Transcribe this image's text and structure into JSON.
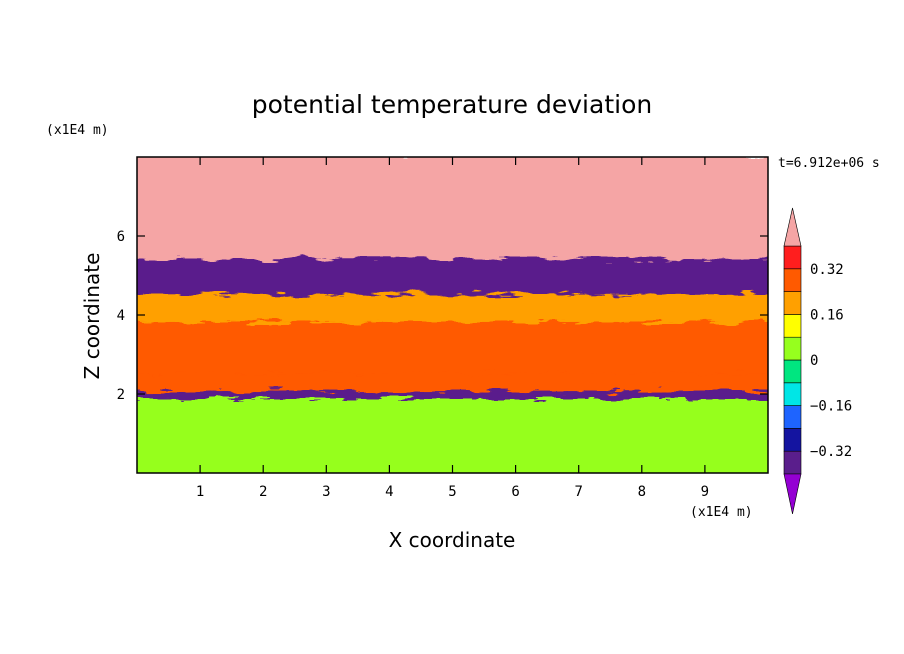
{
  "chart_data": {
    "type": "heatmap",
    "title": "potential temperature deviation",
    "xlabel": "X coordinate",
    "ylabel": "Z coordinate",
    "x_unit": "(x1E4 m)",
    "y_unit": "(x1E4 m)",
    "time_label": "t=6.912e+06 s",
    "xlim": [
      0,
      10
    ],
    "ylim": [
      0,
      8
    ],
    "x_ticks": [
      1,
      2,
      3,
      4,
      5,
      6,
      7,
      8,
      9
    ],
    "y_ticks": [
      2,
      4,
      6
    ],
    "colorbar": {
      "levels": [
        -0.4,
        -0.32,
        -0.24,
        -0.16,
        -0.08,
        0,
        0.08,
        0.16,
        0.24,
        0.32,
        0.4
      ],
      "tick_labels": [
        "0.32",
        "0.16",
        "0",
        "−0.16",
        "−0.32"
      ],
      "tick_values": [
        0.32,
        0.16,
        0,
        -0.16,
        -0.32
      ],
      "colors": [
        "#9400d3",
        "#5a1e8c",
        "#1414a0",
        "#1e64ff",
        "#00e6e6",
        "#00e680",
        "#96ff1e",
        "#ffff00",
        "#ffa000",
        "#ff5a00",
        "#ff1e1e",
        "#f5a5a5"
      ],
      "extend": "both"
    },
    "field_description_bands": [
      {
        "z_range": [
          0,
          1.95
        ],
        "dominant_value": 0.0
      },
      {
        "z_range": [
          1.95,
          2.15
        ],
        "dominant_value": -0.36
      },
      {
        "z_range": [
          2.15,
          2.6
        ],
        "dominant_value": 0.3
      },
      {
        "z_range": [
          2.6,
          3.2
        ],
        "dominant_value": 0.28
      },
      {
        "z_range": [
          3.2,
          3.9
        ],
        "dominant_value": 0.3
      },
      {
        "z_range": [
          3.9,
          4.6
        ],
        "dominant_value": 0.2
      },
      {
        "z_range": [
          4.6,
          5.5
        ],
        "dominant_value": -0.4
      },
      {
        "z_range": [
          5.5,
          8
        ],
        "dominant_value": 0.42
      }
    ]
  }
}
